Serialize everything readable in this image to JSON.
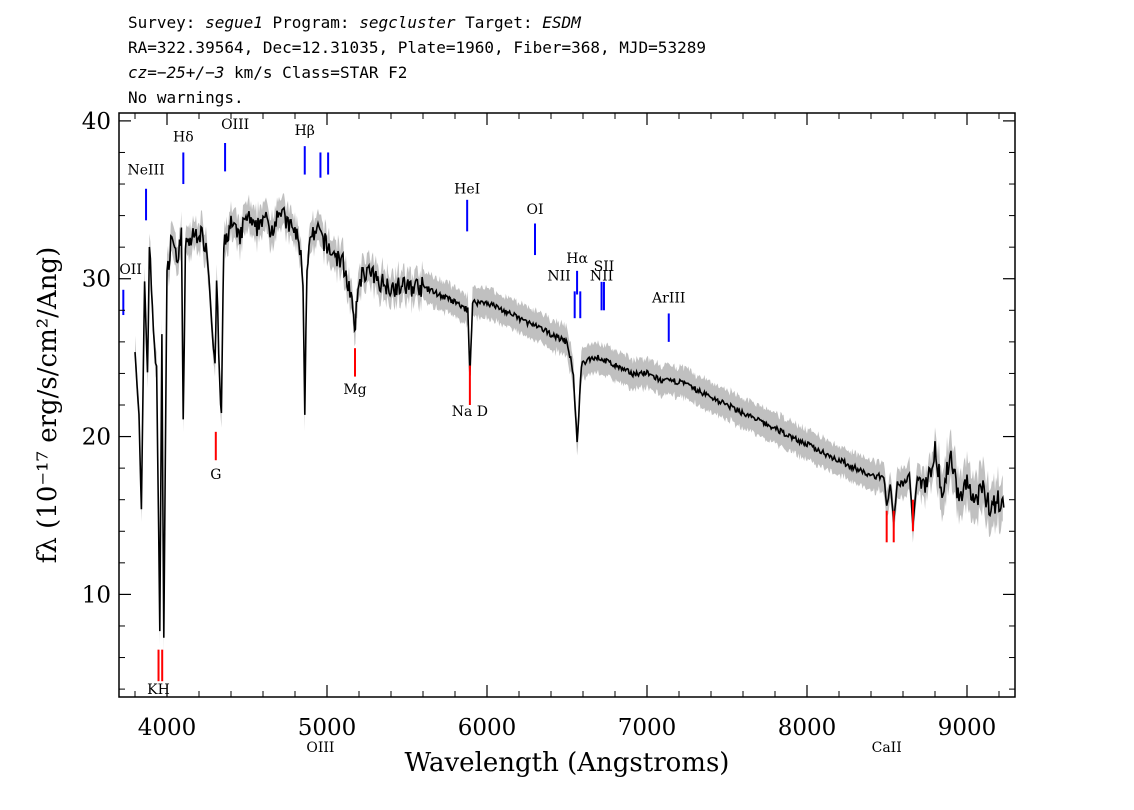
{
  "header": {
    "line1": [
      {
        "t": "Survey: ",
        "i": false
      },
      {
        "t": "segue1",
        "i": true
      },
      {
        "t": " Program: ",
        "i": false
      },
      {
        "t": "segcluster",
        "i": true
      },
      {
        "t": " Target: ",
        "i": false
      },
      {
        "t": "ESDM",
        "i": true
      }
    ],
    "line2": "RA=322.39564, Dec=12.31035, Plate=1960, Fiber=368, MJD=53289",
    "line3": [
      {
        "t": "cz=",
        "i": true
      },
      {
        "t": "−25+/−3",
        "i": true
      },
      {
        "t": " km/s Class=STAR F2",
        "i": false
      }
    ],
    "line4": "No warnings."
  },
  "chart_data": {
    "type": "line",
    "xlabel": "Wavelength (Angstroms)",
    "ylabel": "fλ (10⁻¹⁷ erg/s/cm²/Ang)",
    "xlim": [
      3700,
      9300
    ],
    "ylim": [
      3.5,
      40.5
    ],
    "x_ticks": [
      4000,
      5000,
      6000,
      7000,
      8000,
      9000
    ],
    "y_ticks": [
      10,
      20,
      30,
      40
    ],
    "grid": false,
    "series": [
      {
        "role": "flux",
        "color": "#000000",
        "x": [
          3800,
          3825,
          3840,
          3860,
          3878,
          3890,
          3915,
          3935,
          3955,
          3968,
          3980,
          4000,
          4030,
          4060,
          4090,
          4101,
          4115,
          4150,
          4200,
          4250,
          4290,
          4300,
          4310,
          4330,
          4340,
          4355,
          4400,
          4450,
          4500,
          4550,
          4600,
          4650,
          4700,
          4750,
          4800,
          4830,
          4850,
          4861,
          4875,
          4900,
          4950,
          5000,
          5050,
          5100,
          5150,
          5172,
          5200,
          5250,
          5300,
          5400,
          5500,
          5600,
          5700,
          5800,
          5880,
          5893,
          5910,
          5950,
          6000,
          6100,
          6200,
          6300,
          6400,
          6500,
          6540,
          6563,
          6590,
          6650,
          6700,
          6800,
          6900,
          7000,
          7100,
          7200,
          7300,
          7400,
          7500,
          7600,
          7700,
          7800,
          7900,
          8000,
          8100,
          8200,
          8300,
          8400,
          8480,
          8498,
          8520,
          8542,
          8565,
          8600,
          8640,
          8662,
          8690,
          8750,
          8800,
          8850,
          8900,
          8950,
          9000,
          9050,
          9100,
          9150,
          9200,
          9230
        ],
        "values": [
          26,
          21,
          15,
          30,
          24,
          32,
          27,
          24,
          8,
          26,
          7.8,
          30,
          33,
          31,
          33,
          20.5,
          32,
          32.5,
          33,
          32,
          26,
          24,
          30,
          23,
          21.5,
          32,
          33.5,
          32.5,
          34,
          33,
          34,
          33,
          34.5,
          33.5,
          33,
          32,
          30,
          21.5,
          31,
          32.5,
          33,
          32,
          31.5,
          31,
          29,
          26.5,
          30,
          30.5,
          30,
          29.5,
          29.5,
          29.5,
          29,
          28.5,
          28,
          24,
          28.5,
          28.5,
          28.5,
          28,
          27.5,
          27,
          26.5,
          26,
          24,
          19.5,
          24.5,
          25,
          25,
          24.5,
          24,
          24,
          23.5,
          23.5,
          23,
          22.5,
          22,
          21.5,
          21,
          20.5,
          20,
          19.5,
          19,
          18.5,
          18,
          17.5,
          17.5,
          15.5,
          17,
          14.5,
          17,
          17,
          17.5,
          14.5,
          17.5,
          17,
          19,
          16.5,
          19,
          16,
          17,
          16,
          16.5,
          15.5,
          16,
          15.5
        ]
      },
      {
        "role": "error band",
        "color": "#c0c0c0"
      }
    ],
    "line_labels": [
      {
        "label": "OII",
        "x": 3727,
        "color": "#0000ff",
        "y_top": 29.3,
        "y_bot": 27.7,
        "ty": 30.3,
        "ha": "start"
      },
      {
        "label": "NeIII",
        "x": 3869,
        "color": "#0000ff",
        "y_top": 35.7,
        "y_bot": 33.7,
        "ty": 36.6,
        "ha": "middle"
      },
      {
        "label": "Hδ",
        "x": 4102,
        "color": "#0000ff",
        "y_top": 38.0,
        "y_bot": 36.0,
        "ty": 38.7,
        "ha": "middle"
      },
      {
        "label": "OIII",
        "x": 4363,
        "color": "#0000ff",
        "y_top": 38.6,
        "y_bot": 36.8,
        "ty": 39.5,
        "ha": "start"
      },
      {
        "label": "Hβ",
        "x": 4861,
        "color": "#0000ff",
        "y_top": 38.4,
        "y_bot": 36.6,
        "ty": 39.1,
        "ha": "middle"
      },
      {
        "label": "OIII",
        "x": 4959,
        "color": "#0000ff",
        "y_top": 38.0,
        "y_bot": 36.4,
        "ty": 0,
        "ha": "middle"
      },
      {
        "label": "",
        "x": 5007,
        "color": "#0000ff",
        "y_top": 38.0,
        "y_bot": 36.6,
        "ty": 38.9,
        "ha": "middle"
      },
      {
        "label": "HeI",
        "x": 5876,
        "color": "#0000ff",
        "y_top": 35.0,
        "y_bot": 33.0,
        "ty": 35.4,
        "ha": "middle"
      },
      {
        "label": "OI",
        "x": 6300,
        "color": "#0000ff",
        "y_top": 33.5,
        "y_bot": 31.5,
        "ty": 34.1,
        "ha": "middle"
      },
      {
        "label": "NII",
        "x": 6548,
        "color": "#0000ff",
        "y_top": 29.2,
        "y_bot": 27.5,
        "ty": 29.9,
        "ha": "end"
      },
      {
        "label": "Hα",
        "x": 6563,
        "color": "#0000ff",
        "y_top": 30.5,
        "y_bot": 29.0,
        "ty": 31.0,
        "ha": "middle"
      },
      {
        "label": "",
        "x": 6583,
        "color": "#0000ff",
        "y_top": 29.2,
        "y_bot": 27.5,
        "ty": 0,
        "ha": "middle"
      },
      {
        "label": "NII",
        "x": 6716,
        "color": "#0000ff",
        "y_top": 29.8,
        "y_bot": 28.0,
        "ty": 29.9,
        "ha": "middle"
      },
      {
        "label": "SII",
        "x": 6731,
        "color": "#0000ff",
        "y_top": 29.8,
        "y_bot": 28.0,
        "ty": 30.5,
        "ha": "middle"
      },
      {
        "label": "ArIII",
        "x": 7136,
        "color": "#0000ff",
        "y_top": 27.8,
        "y_bot": 26.0,
        "ty": 28.5,
        "ha": "middle"
      },
      {
        "label": "KH",
        "x": 3947,
        "color": "#ff0000",
        "y_top": 6.5,
        "y_bot": 4.5,
        "ty": 3.7,
        "ha": "middle"
      },
      {
        "label": "",
        "x": 3970,
        "color": "#ff0000",
        "y_top": 6.5,
        "y_bot": 4.5,
        "ty": 0,
        "ha": "middle"
      },
      {
        "label": "G",
        "x": 4305,
        "color": "#ff0000",
        "y_top": 20.3,
        "y_bot": 18.5,
        "ty": 17.3,
        "ha": "middle"
      },
      {
        "label": "Mg",
        "x": 5175,
        "color": "#ff0000",
        "y_top": 25.6,
        "y_bot": 23.8,
        "ty": 22.7,
        "ha": "middle"
      },
      {
        "label": "Na D",
        "x": 5893,
        "color": "#ff0000",
        "y_top": 24.5,
        "y_bot": 22.0,
        "ty": 21.3,
        "ha": "middle"
      },
      {
        "label": "CaII",
        "x": 8498,
        "color": "#ff0000",
        "y_top": 15.3,
        "y_bot": 13.3,
        "ty": 0,
        "ha": "middle"
      },
      {
        "label": "",
        "x": 8542,
        "color": "#ff0000",
        "y_top": 15.3,
        "y_bot": 13.3,
        "ty": 12.5,
        "ha": "middle"
      },
      {
        "label": "",
        "x": 8662,
        "color": "#ff0000",
        "y_top": 16.0,
        "y_bot": 14.0,
        "ty": 0,
        "ha": "middle"
      }
    ]
  }
}
